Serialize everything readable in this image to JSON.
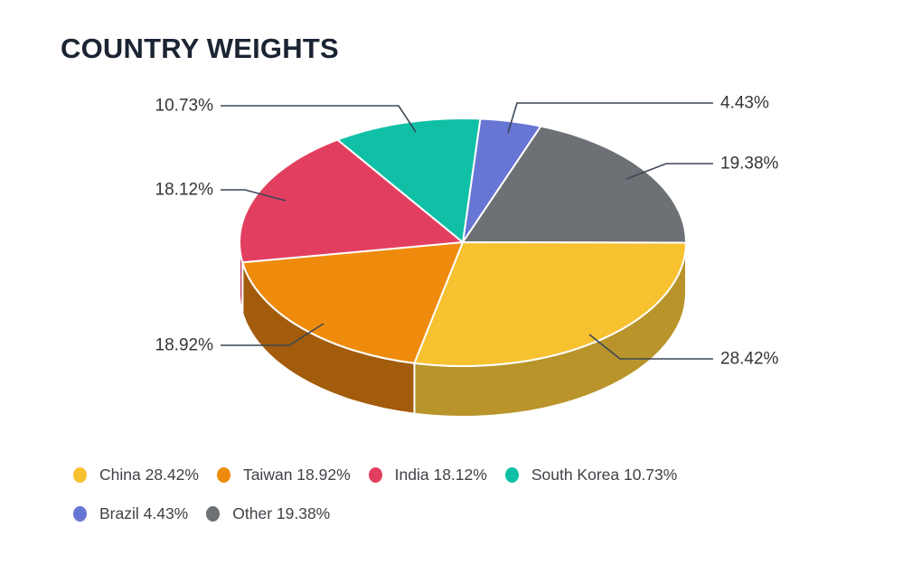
{
  "page": {
    "background": "#FFFFFF"
  },
  "chart_data": {
    "type": "pie",
    "style": "3d",
    "title": "COUNTRY WEIGHTS",
    "title_color": "#1B2433",
    "label_color": "#33363B",
    "leader_color": "#3C4755",
    "legend_text_color": "#3F4247",
    "legend_position": "bottom-left",
    "labels": "outside-percent-callouts",
    "start_angle_deg": 4.5,
    "slices": [
      {
        "name": "China",
        "value": 28.42,
        "label": "28.42%",
        "legend_label": "China 28.42%",
        "color": "#F7C12F",
        "side_color": "#B8942B"
      },
      {
        "name": "Taiwan",
        "value": 18.92,
        "label": "18.92%",
        "legend_label": "Taiwan 18.92%",
        "color": "#EF8B0C",
        "side_color": "#A25C0B"
      },
      {
        "name": "India",
        "value": 18.12,
        "label": "18.12%",
        "legend_label": "India 18.12%",
        "color": "#E23F60",
        "side_color": "#C2395C"
      },
      {
        "name": "South Korea",
        "value": 10.73,
        "label": "10.73%",
        "legend_label": "South Korea 10.73%",
        "color": "#0FC0A6"
      },
      {
        "name": "Brazil",
        "value": 4.43,
        "label": "4.43%",
        "legend_label": "Brazil 4.43%",
        "color": "#6775D4"
      },
      {
        "name": "Other",
        "value": 19.38,
        "label": "19.38%",
        "legend_label": "Other 19.38%",
        "color": "#6D7074"
      }
    ],
    "draw_order": [
      "Brazil",
      "Other",
      "China",
      "Taiwan",
      "India",
      "South Korea"
    ],
    "legend_rows": [
      [
        "China",
        "Taiwan",
        "India",
        "South Korea"
      ],
      [
        "Brazil",
        "Other"
      ]
    ]
  }
}
